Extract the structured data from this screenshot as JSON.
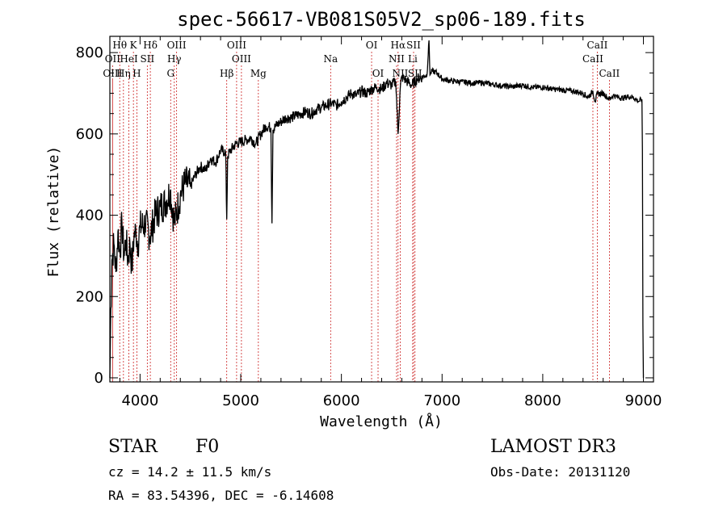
{
  "chart_data": {
    "type": "line",
    "title": "spec-56617-VB081S05V2_sp06-189.fits",
    "xlabel": "Wavelength (Å)",
    "ylabel": "Flux (relative)",
    "xlim": [
      3700,
      9100
    ],
    "ylim": [
      -10,
      840
    ],
    "xticks": [
      4000,
      5000,
      6000,
      7000,
      8000,
      9000
    ],
    "yticks": [
      0,
      200,
      400,
      600,
      800
    ],
    "series": [
      {
        "name": "flux",
        "x": [
          3700,
          3710,
          3720,
          3740,
          3760,
          3780,
          3800,
          3820,
          3840,
          3860,
          3880,
          3900,
          3920,
          3940,
          3960,
          3980,
          4000,
          4050,
          4100,
          4150,
          4200,
          4250,
          4300,
          4340,
          4400,
          4450,
          4500,
          4550,
          4600,
          4650,
          4700,
          4750,
          4800,
          4850,
          4861,
          4870,
          4900,
          4950,
          5000,
          5050,
          5100,
          5150,
          5200,
          5250,
          5300,
          5310,
          5320,
          5350,
          5400,
          5450,
          5500,
          5550,
          5600,
          5650,
          5700,
          5750,
          5800,
          5850,
          5900,
          5950,
          6000,
          6050,
          6100,
          6150,
          6200,
          6250,
          6300,
          6350,
          6400,
          6450,
          6500,
          6540,
          6563,
          6585,
          6600,
          6650,
          6700,
          6750,
          6800,
          6850,
          6870,
          6880,
          6900,
          6950,
          7000,
          7100,
          7200,
          7300,
          7400,
          7500,
          7600,
          7700,
          7800,
          7900,
          8000,
          8100,
          8200,
          8300,
          8400,
          8450,
          8498,
          8520,
          8542,
          8600,
          8662,
          8700,
          8750,
          8800,
          8850,
          8900,
          8950,
          8985,
          8990,
          8995,
          9000
        ],
        "values": [
          0,
          170,
          290,
          330,
          260,
          360,
          310,
          380,
          300,
          340,
          290,
          330,
          270,
          350,
          360,
          330,
          370,
          380,
          350,
          400,
          420,
          430,
          460,
          380,
          450,
          480,
          470,
          500,
          520,
          510,
          540,
          530,
          560,
          555,
          390,
          545,
          560,
          575,
          580,
          585,
          590,
          575,
          600,
          620,
          615,
          380,
          610,
          620,
          630,
          640,
          640,
          645,
          650,
          655,
          650,
          660,
          665,
          670,
          675,
          670,
          680,
          690,
          700,
          695,
          705,
          700,
          710,
          715,
          710,
          725,
          720,
          730,
          600,
          715,
          740,
          730,
          720,
          735,
          740,
          745,
          830,
          745,
          755,
          750,
          735,
          730,
          728,
          725,
          726,
          722,
          718,
          716,
          720,
          714,
          715,
          710,
          708,
          705,
          700,
          690,
          705,
          680,
          698,
          700,
          685,
          695,
          690,
          688,
          692,
          690,
          680,
          685,
          560,
          130,
          0
        ]
      }
    ],
    "spectral_lines": [
      {
        "label": "Hθ",
        "wavelength": 3798,
        "row": 1
      },
      {
        "label": "K",
        "wavelength": 3934,
        "row": 1
      },
      {
        "label": "Hδ",
        "wavelength": 4102,
        "row": 1
      },
      {
        "label": "OIII",
        "wavelength": 4363,
        "row": 1
      },
      {
        "label": "OIII",
        "wavelength": 4959,
        "row": 1
      },
      {
        "label": "OI",
        "wavelength": 6300,
        "row": 1
      },
      {
        "label": "Hα",
        "wavelength": 6563,
        "row": 1
      },
      {
        "label": "SII",
        "wavelength": 6717,
        "row": 1
      },
      {
        "label": "CaII",
        "wavelength": 8542,
        "row": 1
      },
      {
        "label": "OII",
        "wavelength": 3727,
        "row": 2
      },
      {
        "label": "HeI",
        "wavelength": 3889,
        "row": 2
      },
      {
        "label": "SII",
        "wavelength": 4072,
        "row": 2
      },
      {
        "label": "Hγ",
        "wavelength": 4340,
        "row": 2
      },
      {
        "label": "OIII",
        "wavelength": 5007,
        "row": 2
      },
      {
        "label": "Na",
        "wavelength": 5893,
        "row": 2
      },
      {
        "label": "NII",
        "wavelength": 6548,
        "row": 2
      },
      {
        "label": "Li",
        "wavelength": 6708,
        "row": 2
      },
      {
        "label": "CaII",
        "wavelength": 8498,
        "row": 2
      },
      {
        "label": "OIII",
        "wavelength": 3727,
        "row": 3
      },
      {
        "label": "Hη",
        "wavelength": 3835,
        "row": 3
      },
      {
        "label": "H",
        "wavelength": 3968,
        "row": 3
      },
      {
        "label": "G",
        "wavelength": 4304,
        "row": 3
      },
      {
        "label": "Hβ",
        "wavelength": 4861,
        "row": 3
      },
      {
        "label": "Mg",
        "wavelength": 5175,
        "row": 3
      },
      {
        "label": "OI",
        "wavelength": 6364,
        "row": 3
      },
      {
        "label": "NII",
        "wavelength": 6584,
        "row": 3
      },
      {
        "label": "SII",
        "wavelength": 6731,
        "row": 3
      },
      {
        "label": "CaII",
        "wavelength": 8662,
        "row": 3
      }
    ]
  },
  "info": {
    "object_class": "STAR",
    "subclass": "F0",
    "survey": "LAMOST DR3",
    "cz": "cz = 14.2 ± 11.5 km/s",
    "obs_date": "Obs-Date: 20131120",
    "coords": "RA =  83.54396, DEC =  -6.14608"
  },
  "colors": {
    "line_marker": "#cc2222",
    "spectrum": "#000000"
  }
}
